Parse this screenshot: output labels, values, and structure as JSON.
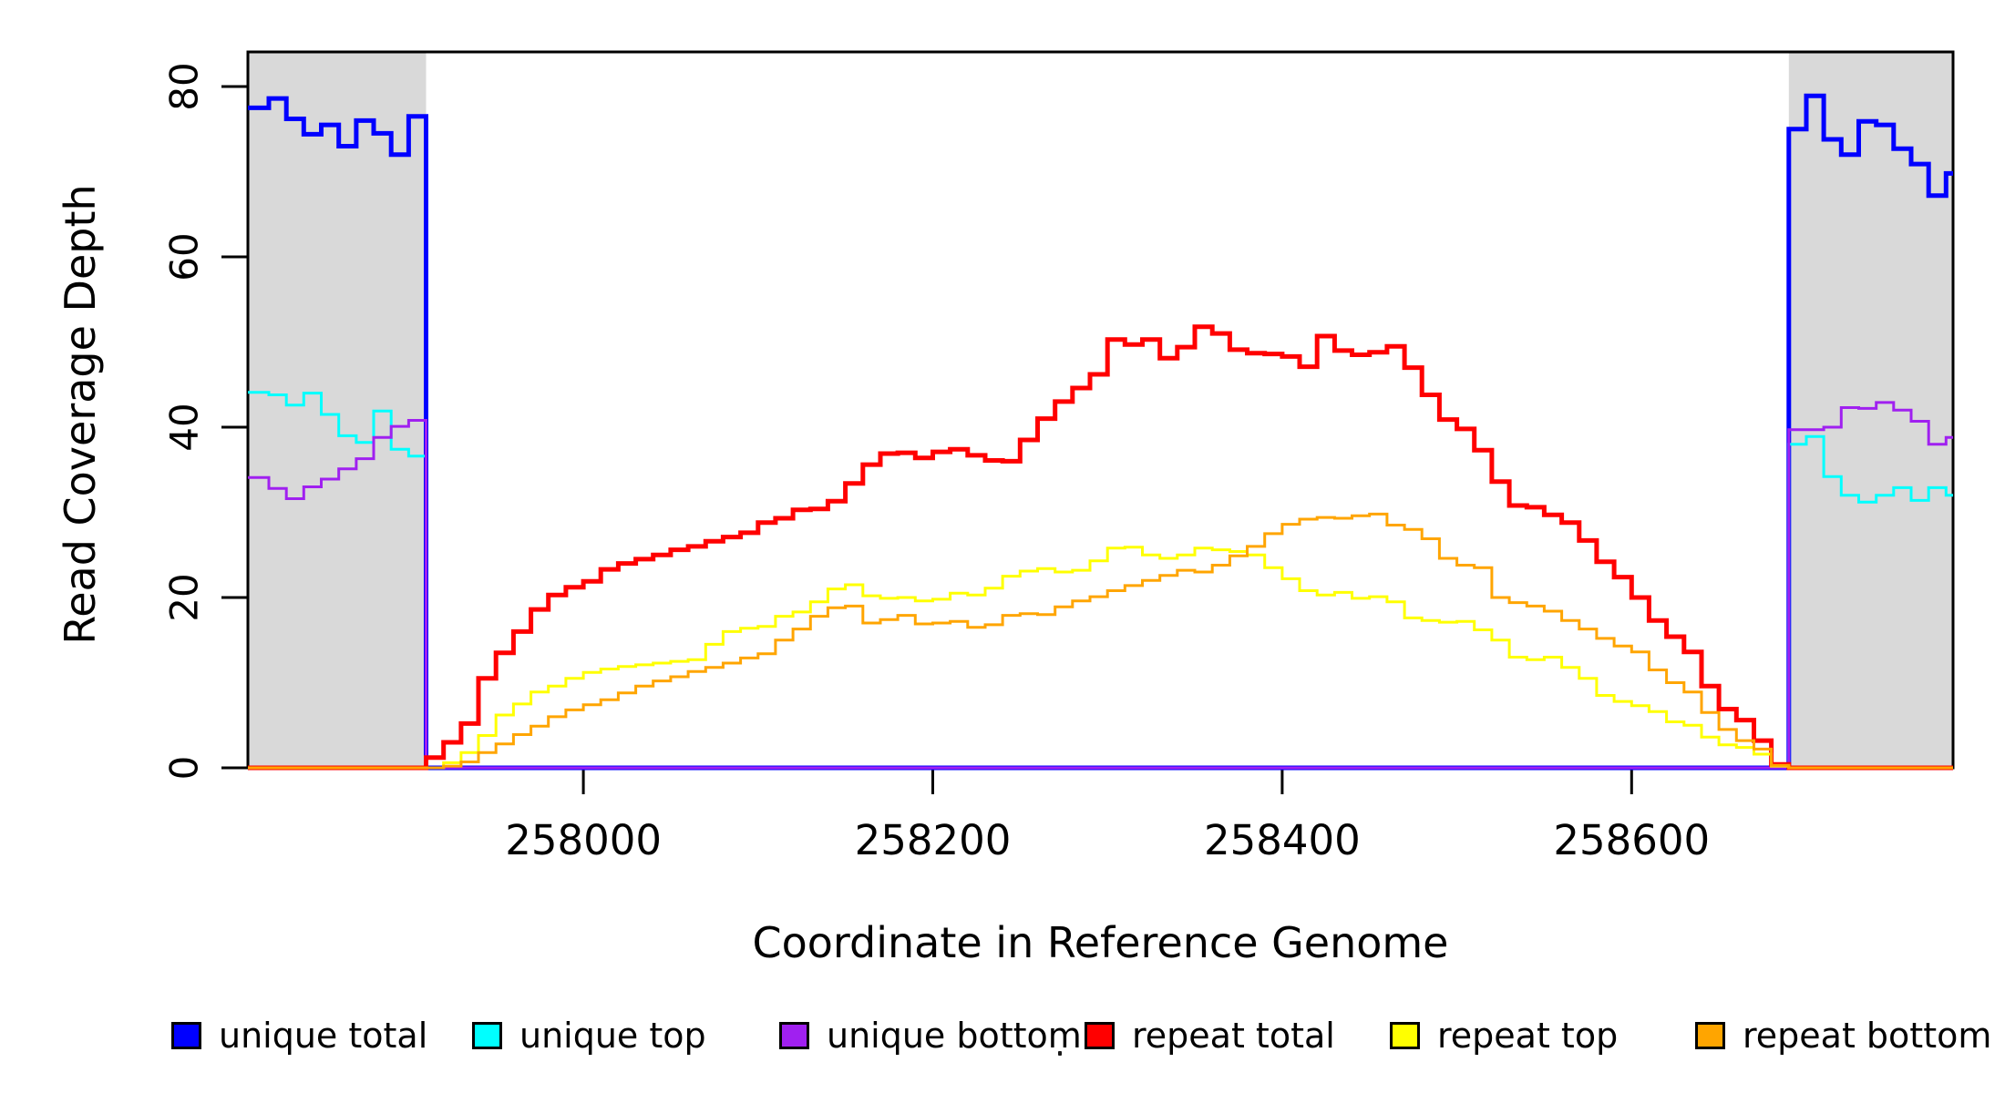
{
  "chart_data": {
    "type": "line",
    "title": "",
    "xlabel": "Coordinate in Reference Genome",
    "ylabel": "Read Coverage Depth",
    "xlim": [
      257808,
      258784
    ],
    "ylim": [
      0,
      84
    ],
    "x_ticks": [
      258000,
      258200,
      258400,
      258600
    ],
    "y_ticks": [
      0,
      20,
      40,
      60,
      80
    ],
    "grid": false,
    "legend_position": "bottom",
    "plot_style": "step",
    "shade_color": "#d9d9d9",
    "shaded_x_ranges": [
      [
        257808,
        257910
      ],
      [
        258690,
        258784
      ]
    ],
    "x_start": 257810,
    "x_step": 10,
    "series": [
      {
        "name": "unique total",
        "color": "#0000FF",
        "width": 5,
        "values": [
          77.5,
          78.6,
          76.2,
          74.4,
          75.5,
          73.0,
          76.0,
          74.5,
          72.0,
          76.5,
          0,
          0,
          0,
          0,
          0,
          0,
          0,
          0,
          0,
          0,
          0,
          0,
          0,
          0,
          0,
          0,
          0,
          0,
          0,
          0,
          0,
          0,
          0,
          0,
          0,
          0,
          0,
          0,
          0,
          0,
          0,
          0,
          0,
          0,
          0,
          0,
          0,
          0,
          0,
          0,
          0,
          0,
          0,
          0,
          0,
          0,
          0,
          0,
          0,
          0,
          0,
          0,
          0,
          0,
          0,
          0,
          0,
          0,
          0,
          0,
          0,
          0,
          0,
          0,
          0,
          0,
          0,
          0,
          0,
          0,
          0,
          0,
          0,
          0,
          0,
          0,
          0,
          0,
          75.0,
          78.9,
          73.8,
          72.0,
          75.9,
          75.5,
          72.7,
          70.9,
          67.2,
          69.8
        ]
      },
      {
        "name": "unique top",
        "color": "#00FFFF",
        "width": 3,
        "values": [
          44.1,
          43.8,
          42.6,
          44.0,
          41.5,
          39.0,
          38.2,
          41.9,
          37.4,
          36.6,
          0,
          0,
          0,
          0,
          0,
          0,
          0,
          0,
          0,
          0,
          0,
          0,
          0,
          0,
          0,
          0,
          0,
          0,
          0,
          0,
          0,
          0,
          0,
          0,
          0,
          0,
          0,
          0,
          0,
          0,
          0,
          0,
          0,
          0,
          0,
          0,
          0,
          0,
          0,
          0,
          0,
          0,
          0,
          0,
          0,
          0,
          0,
          0,
          0,
          0,
          0,
          0,
          0,
          0,
          0,
          0,
          0,
          0,
          0,
          0,
          0,
          0,
          0,
          0,
          0,
          0,
          0,
          0,
          0,
          0,
          0,
          0,
          0,
          0,
          0,
          0,
          0,
          0,
          38.0,
          38.9,
          34.2,
          32.0,
          31.2,
          32.0,
          32.9,
          31.4,
          32.9,
          32.0
        ]
      },
      {
        "name": "unique bottom",
        "color": "#A020F0",
        "width": 3,
        "values": [
          34.1,
          32.8,
          31.6,
          33.0,
          33.9,
          35.1,
          36.3,
          38.8,
          40.1,
          40.8,
          0,
          0,
          0,
          0,
          0,
          0,
          0,
          0,
          0,
          0,
          0,
          0,
          0,
          0,
          0,
          0,
          0,
          0,
          0,
          0,
          0,
          0,
          0,
          0,
          0,
          0,
          0,
          0,
          0,
          0,
          0,
          0,
          0,
          0,
          0,
          0,
          0,
          0,
          0,
          0,
          0,
          0,
          0,
          0,
          0,
          0,
          0,
          0,
          0,
          0,
          0,
          0,
          0,
          0,
          0,
          0,
          0,
          0,
          0,
          0,
          0,
          0,
          0,
          0,
          0,
          0,
          0,
          0,
          0,
          0,
          0,
          0,
          0,
          0,
          0,
          0,
          0,
          0,
          39.7,
          39.7,
          40.0,
          42.3,
          42.2,
          42.9,
          42.0,
          40.7,
          38.0,
          38.8
        ]
      },
      {
        "name": "repeat total",
        "color": "#FF0000",
        "width": 5,
        "values": [
          0,
          0,
          0,
          0,
          0,
          0,
          0,
          0,
          0,
          0,
          1.2,
          3.0,
          5.2,
          10.5,
          13.5,
          16.0,
          18.6,
          20.3,
          21.2,
          21.9,
          23.3,
          24.0,
          24.5,
          25.0,
          25.6,
          26.0,
          26.6,
          27.1,
          27.6,
          28.8,
          29.3,
          30.3,
          30.4,
          31.3,
          33.4,
          35.6,
          36.9,
          37.0,
          36.4,
          37.1,
          37.4,
          36.7,
          36.1,
          36.0,
          38.5,
          41.0,
          43.0,
          44.6,
          46.2,
          50.3,
          49.7,
          50.3,
          48.1,
          49.4,
          51.8,
          51.0,
          49.1,
          48.7,
          48.6,
          48.3,
          47.1,
          50.7,
          49.0,
          48.5,
          48.8,
          49.5,
          47.0,
          43.8,
          40.9,
          39.8,
          37.3,
          33.6,
          30.8,
          30.6,
          29.7,
          28.8,
          26.7,
          24.2,
          22.4,
          20.0,
          17.3,
          15.4,
          13.6,
          9.6,
          6.9,
          5.6,
          3.2,
          0.4,
          0,
          0,
          0,
          0,
          0,
          0,
          0,
          0,
          0,
          0
        ]
      },
      {
        "name": "repeat top",
        "color": "#FFFF00",
        "width": 3,
        "values": [
          0,
          0,
          0,
          0,
          0,
          0,
          0,
          0,
          0,
          0,
          0,
          0.6,
          1.8,
          3.8,
          6.2,
          7.5,
          8.9,
          9.6,
          10.5,
          11.2,
          11.6,
          11.9,
          12.1,
          12.3,
          12.5,
          12.7,
          14.5,
          16.0,
          16.4,
          16.6,
          17.8,
          18.3,
          19.5,
          21.0,
          21.5,
          20.2,
          19.9,
          20.0,
          19.6,
          19.8,
          20.5,
          20.3,
          21.1,
          22.5,
          23.1,
          23.4,
          23.0,
          23.2,
          24.3,
          25.8,
          25.9,
          25.0,
          24.6,
          25.0,
          25.8,
          25.6,
          25.4,
          25.0,
          23.5,
          22.2,
          20.8,
          20.3,
          20.6,
          19.9,
          20.1,
          19.5,
          17.6,
          17.3,
          17.1,
          17.2,
          16.2,
          15.0,
          13.0,
          12.7,
          13.0,
          11.8,
          10.5,
          8.5,
          7.8,
          7.3,
          6.6,
          5.4,
          5.0,
          3.6,
          2.7,
          2.4,
          1.6,
          0.2,
          0,
          0,
          0,
          0,
          0,
          0,
          0,
          0,
          0,
          0
        ]
      },
      {
        "name": "repeat bottom",
        "color": "#FFA500",
        "width": 3,
        "values": [
          0,
          0,
          0,
          0,
          0,
          0,
          0,
          0,
          0,
          0,
          0,
          0.2,
          0.7,
          1.8,
          2.8,
          3.9,
          4.9,
          6.0,
          6.8,
          7.4,
          8.0,
          8.8,
          9.6,
          10.2,
          10.7,
          11.3,
          11.8,
          12.3,
          12.9,
          13.4,
          15.0,
          16.3,
          17.8,
          18.8,
          19.0,
          17.0,
          17.4,
          17.9,
          16.9,
          17.0,
          17.2,
          16.5,
          16.8,
          17.9,
          18.1,
          18.0,
          18.9,
          19.6,
          20.1,
          20.8,
          21.4,
          22.0,
          22.6,
          23.2,
          23.0,
          23.8,
          24.9,
          26.0,
          27.5,
          28.6,
          29.2,
          29.4,
          29.3,
          29.6,
          29.8,
          28.5,
          28.0,
          26.9,
          24.6,
          23.8,
          23.5,
          20.0,
          19.4,
          19.0,
          18.4,
          17.3,
          16.3,
          15.2,
          14.3,
          13.6,
          11.5,
          10.0,
          8.9,
          6.5,
          4.5,
          3.2,
          2.2,
          0.3,
          0,
          0,
          0,
          0,
          0,
          0,
          0,
          0,
          0,
          0
        ]
      }
    ],
    "legend": {
      "entries": [
        "unique total",
        "unique top",
        "unique bottom",
        "repeat total",
        "repeat top",
        "repeat bottom"
      ]
    }
  }
}
